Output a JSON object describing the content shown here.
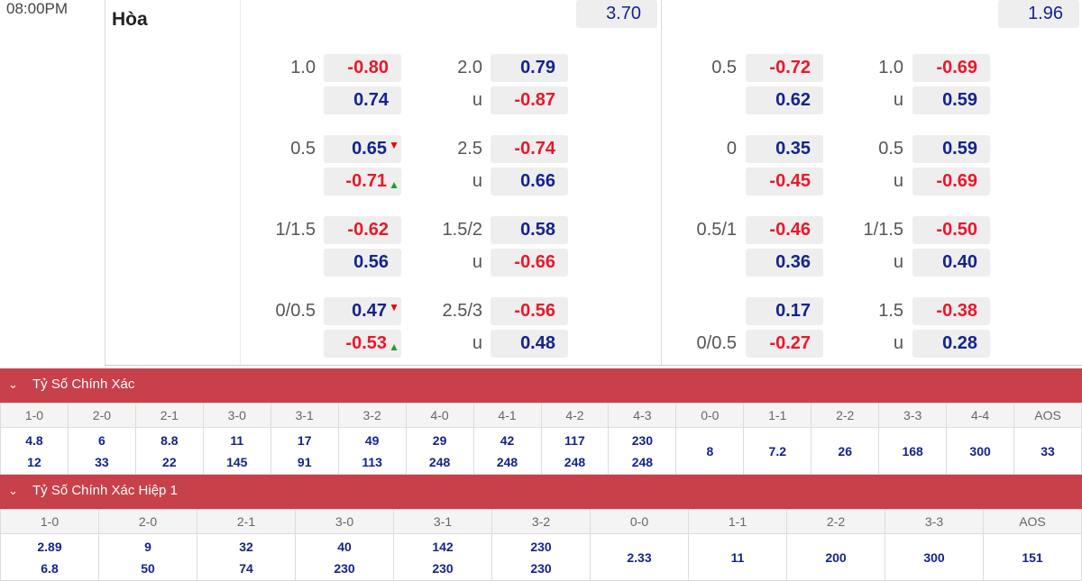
{
  "match": {
    "time": "08:00PM",
    "draw_label": "Hòa",
    "draw_odds_ft": "3.70",
    "draw_odds_h1": "1.96"
  },
  "ft": {
    "handicap": [
      {
        "line": "1.0",
        "home": "-0.80",
        "away": "0.74"
      },
      {
        "line": "0.5",
        "home": "0.65",
        "away": "-0.71",
        "home_arrow": "▼",
        "away_arrow": "▲"
      },
      {
        "line": "1/1.5",
        "home": "-0.62",
        "away": "0.56"
      },
      {
        "line": "0/0.5",
        "home": "0.47",
        "away": "-0.53",
        "home_arrow": "▼",
        "away_arrow": "▲"
      }
    ],
    "overunder": [
      {
        "line": "2.0",
        "over": "0.79",
        "u": "u",
        "under": "-0.87"
      },
      {
        "line": "2.5",
        "over": "-0.74",
        "u": "u",
        "under": "0.66"
      },
      {
        "line": "1.5/2",
        "over": "0.58",
        "u": "u",
        "under": "-0.66"
      },
      {
        "line": "2.5/3",
        "over": "-0.56",
        "u": "u",
        "under": "0.48"
      }
    ]
  },
  "h1": {
    "handicap": [
      {
        "line": "0.5",
        "home": "-0.72",
        "away": "0.62"
      },
      {
        "line": "0",
        "home": "0.35",
        "away": "-0.45"
      },
      {
        "line": "0.5/1",
        "home": "-0.46",
        "away": "0.36"
      },
      {
        "line": "0/0.5",
        "home": "0.17",
        "away": "-0.27"
      }
    ],
    "overunder": [
      {
        "line": "1.0",
        "over": "-0.69",
        "u": "u",
        "under": "0.59"
      },
      {
        "line": "0.5",
        "over": "0.59",
        "u": "u",
        "under": "-0.69"
      },
      {
        "line": "1/1.5",
        "over": "-0.50",
        "u": "u",
        "under": "0.40"
      },
      {
        "line": "1.5",
        "over": "-0.38",
        "u": "u",
        "under": "0.28"
      }
    ]
  },
  "correct_score": {
    "title": "Tỷ Số Chính Xác",
    "headers": [
      "1-0",
      "2-0",
      "2-1",
      "3-0",
      "3-1",
      "3-2",
      "4-0",
      "4-1",
      "4-2",
      "4-3",
      "0-0",
      "1-1",
      "2-2",
      "3-3",
      "4-4",
      "AOS"
    ],
    "top": [
      "4.8",
      "6",
      "8.8",
      "11",
      "17",
      "49",
      "29",
      "42",
      "117",
      "230",
      "8",
      "7.2",
      "26",
      "168",
      "300",
      "33"
    ],
    "bottom": [
      "12",
      "33",
      "22",
      "145",
      "91",
      "113",
      "248",
      "248",
      "248",
      "248",
      "",
      "",
      "",
      "",
      "",
      ""
    ]
  },
  "correct_score_h1": {
    "title": "Tỷ Số Chính Xác Hiệp 1",
    "headers": [
      "1-0",
      "2-0",
      "2-1",
      "3-0",
      "3-1",
      "3-2",
      "0-0",
      "1-1",
      "2-2",
      "3-3",
      "AOS"
    ],
    "top": [
      "2.89",
      "9",
      "32",
      "40",
      "142",
      "230",
      "2.33",
      "11",
      "200",
      "300",
      "151"
    ],
    "bottom": [
      "6.8",
      "50",
      "74",
      "230",
      "230",
      "230",
      "",
      "",
      "",
      "",
      ""
    ]
  },
  "colors": {
    "negative": "#e8182b",
    "positive": "#14238c",
    "bar": "#c8404a"
  }
}
